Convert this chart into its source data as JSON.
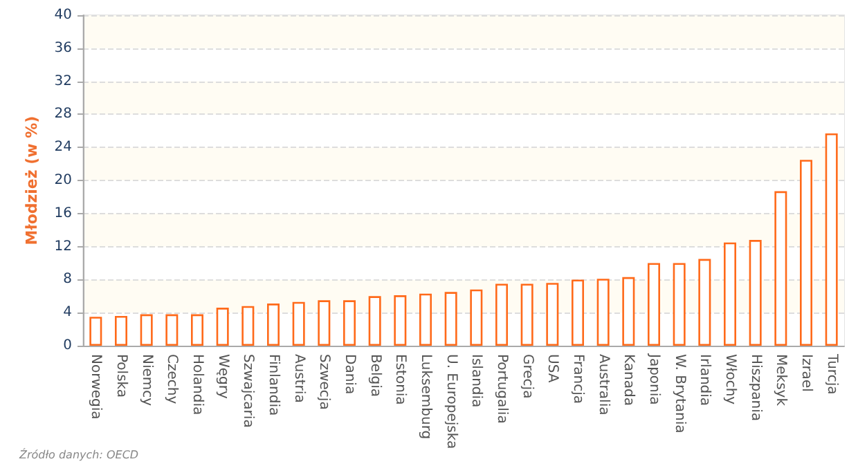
{
  "chart_data": {
    "type": "bar",
    "ylabel": "Młodzież (w %)",
    "categories": [
      "Norwegia",
      "Polska",
      "Niemcy",
      "Czechy",
      "Holandia",
      "Węgry",
      "Szwajcaria",
      "Finlandia",
      "Austria",
      "Szwecja",
      "Dania",
      "Belgia",
      "Estonia",
      "Luksemburg",
      "U. Europejska",
      "Islandia",
      "Portugalia",
      "Grecja",
      "USA",
      "Francja",
      "Australia",
      "Kanada",
      "Japonia",
      "W. Brytania",
      "Irlandia",
      "Włochy",
      "Hiszpania",
      "Meksyk",
      "Izrael",
      "Turcja"
    ],
    "values": [
      3.5,
      3.6,
      3.8,
      3.8,
      3.8,
      4.6,
      4.8,
      5.1,
      5.3,
      5.5,
      5.5,
      6.0,
      6.1,
      6.3,
      6.5,
      6.8,
      7.5,
      7.5,
      7.6,
      8.0,
      8.1,
      8.3,
      10.0,
      10.0,
      10.5,
      12.5,
      12.8,
      18.7,
      22.5,
      25.7
    ],
    "color": "#ff6a1a",
    "ylim": [
      0,
      40
    ],
    "yticks": [
      0,
      4,
      8,
      12,
      16,
      20,
      24,
      28,
      32,
      36,
      40
    ],
    "grid": "y",
    "annotations": [
      "Źródło danych: OECD"
    ]
  }
}
